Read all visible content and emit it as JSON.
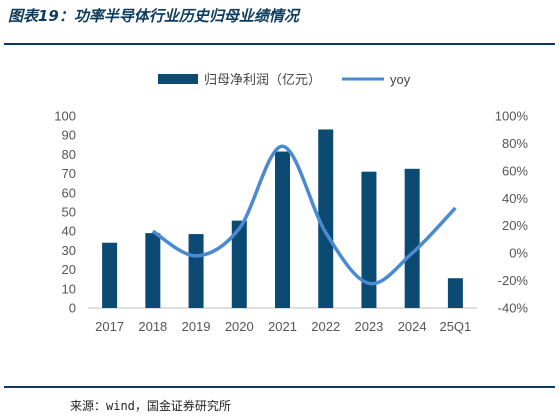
{
  "figure_title": "图表19：功率半导体行业历史归母业绩情况",
  "source_note": "来源：wind，国金证券研究所",
  "colors": {
    "bar": "#0b4a72",
    "line": "#4a8ad0",
    "title": "#0d3b5e"
  },
  "chart_data": {
    "type": "bar",
    "categories": [
      "2017",
      "2018",
      "2019",
      "2020",
      "2021",
      "2022",
      "2023",
      "2024",
      "25Q1"
    ],
    "series": [
      {
        "name": "归母净利润（亿元）",
        "type": "bar",
        "axis": "left",
        "values": [
          34,
          39,
          38.5,
          45.5,
          81.5,
          93,
          71,
          72.5,
          15.5
        ]
      },
      {
        "name": "yoy",
        "type": "line",
        "axis": "right",
        "unit": "%",
        "smooth": true,
        "values": [
          null,
          16,
          -2,
          18,
          78,
          15,
          -22,
          0,
          33
        ]
      }
    ],
    "y_left": {
      "min": 0,
      "max": 100,
      "step": 10,
      "ticks": [
        "0",
        "10",
        "20",
        "30",
        "40",
        "50",
        "60",
        "70",
        "80",
        "90",
        "100"
      ]
    },
    "y_right": {
      "min": -40,
      "max": 100,
      "step": 20,
      "ticks": [
        "-40%",
        "-20%",
        "0%",
        "20%",
        "40%",
        "60%",
        "80%",
        "100%"
      ]
    },
    "legend": {
      "position": "top"
    },
    "grid": false
  }
}
